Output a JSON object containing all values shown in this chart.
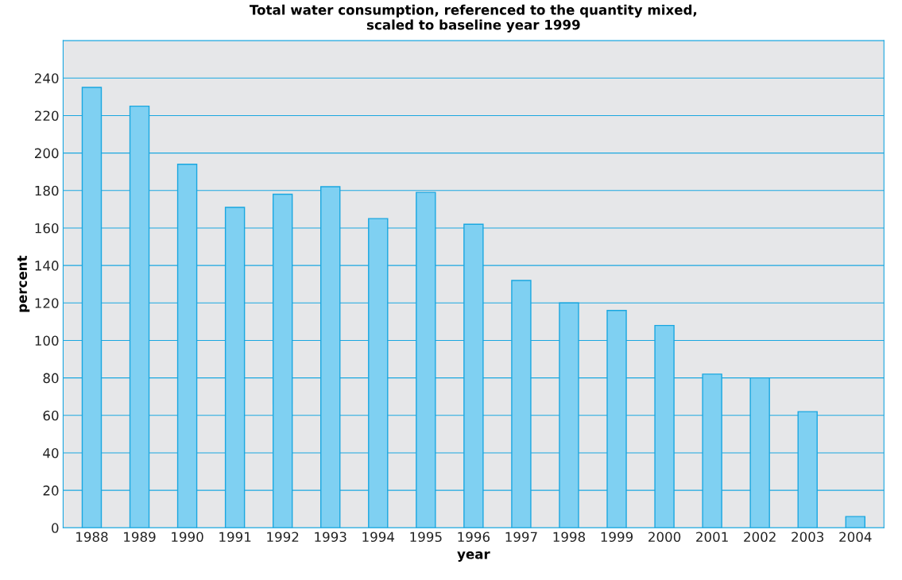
{
  "chart_data": {
    "type": "bar",
    "title": "Total water consumption, referenced to the quantity mixed,\nscaled to baseline year 1999",
    "xlabel": "year",
    "ylabel": "percent",
    "categories": [
      "1988",
      "1989",
      "1990",
      "1991",
      "1992",
      "1993",
      "1994",
      "1995",
      "1996",
      "1997",
      "1998",
      "1999",
      "2000",
      "2001",
      "2002",
      "2003",
      "2004"
    ],
    "values": [
      235,
      225,
      194,
      171,
      178,
      182,
      165,
      179,
      162,
      132,
      120,
      116,
      108,
      82,
      80,
      62,
      6
    ],
    "color": "#7fd0f2",
    "ylim": [
      0,
      260
    ],
    "yticks": [
      0,
      20,
      40,
      60,
      80,
      100,
      120,
      140,
      160,
      180,
      200,
      220,
      240
    ],
    "grid": "y"
  }
}
